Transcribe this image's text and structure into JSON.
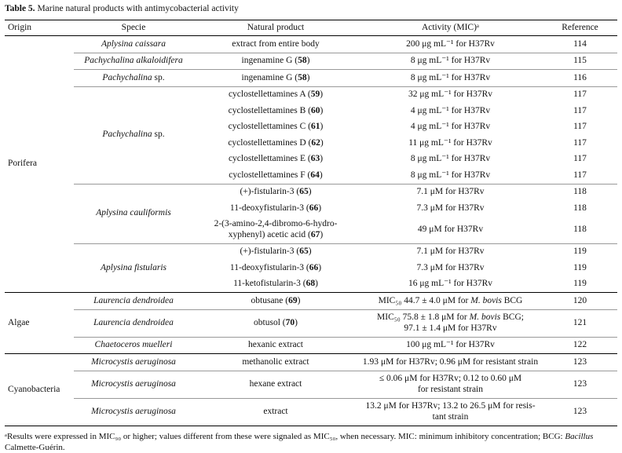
{
  "caption": {
    "label": "Table 5.",
    "text": "Marine natural products with antimycobacterial activity"
  },
  "table": {
    "columns": [
      "Origin",
      "Specie",
      "Natural product",
      "Activity (MIC)ᵃ",
      "Reference"
    ],
    "groups": [
      {
        "origin": "Porifera",
        "species": [
          {
            "name": [
              {
                "t": "Aplysina caissara",
                "i": true
              }
            ],
            "rows": [
              {
                "product": "extract from entire body",
                "activity": "200 μg mL⁻¹ for H37Rv",
                "reference": "114"
              }
            ]
          },
          {
            "name": [
              {
                "t": "Pachychalina alkaloidifera",
                "i": true
              }
            ],
            "rows": [
              {
                "product": [
                  {
                    "t": "ingenamine G ("
                  },
                  {
                    "t": "58",
                    "b": true
                  },
                  {
                    "t": ")"
                  }
                ],
                "activity": "8 μg mL⁻¹ for H37Rv",
                "reference": "115"
              }
            ]
          },
          {
            "name": [
              {
                "t": "Pachychalina",
                "i": true
              },
              {
                "t": " sp."
              }
            ],
            "rows": [
              {
                "product": [
                  {
                    "t": "ingenamine G ("
                  },
                  {
                    "t": "58",
                    "b": true
                  },
                  {
                    "t": ")"
                  }
                ],
                "activity": "8 μg mL⁻¹ for H37Rv",
                "reference": "116"
              }
            ]
          },
          {
            "name": [
              {
                "t": "Pachychalina",
                "i": true
              },
              {
                "t": " sp."
              }
            ],
            "rows": [
              {
                "product": [
                  {
                    "t": "cyclostellettamines A ("
                  },
                  {
                    "t": "59",
                    "b": true
                  },
                  {
                    "t": ")"
                  }
                ],
                "activity": "32 μg mL⁻¹ for H37Rv",
                "reference": "117"
              },
              {
                "product": [
                  {
                    "t": "cyclostellettamines B ("
                  },
                  {
                    "t": "60",
                    "b": true
                  },
                  {
                    "t": ")"
                  }
                ],
                "activity": "4 μg mL⁻¹ for H37Rv",
                "reference": "117"
              },
              {
                "product": [
                  {
                    "t": "cyclostellettamines C ("
                  },
                  {
                    "t": "61",
                    "b": true
                  },
                  {
                    "t": ")"
                  }
                ],
                "activity": "4 μg mL⁻¹ for H37Rv",
                "reference": "117"
              },
              {
                "product": [
                  {
                    "t": "cyclostellettamines D ("
                  },
                  {
                    "t": "62",
                    "b": true
                  },
                  {
                    "t": ")"
                  }
                ],
                "activity": "11 μg mL⁻¹ for H37Rv",
                "reference": "117"
              },
              {
                "product": [
                  {
                    "t": "cyclostellettamines E ("
                  },
                  {
                    "t": "63",
                    "b": true
                  },
                  {
                    "t": ")"
                  }
                ],
                "activity": "8 μg mL⁻¹ for H37Rv",
                "reference": "117"
              },
              {
                "product": [
                  {
                    "t": "cyclostellettamines F ("
                  },
                  {
                    "t": "64",
                    "b": true
                  },
                  {
                    "t": ")"
                  }
                ],
                "activity": "8 μg mL⁻¹ for H37Rv",
                "reference": "117"
              }
            ]
          },
          {
            "name": [
              {
                "t": "Aplysina cauliformis",
                "i": true
              }
            ],
            "rows": [
              {
                "product": [
                  {
                    "t": "(+)-fistularin-3 ("
                  },
                  {
                    "t": "65",
                    "b": true
                  },
                  {
                    "t": ")"
                  }
                ],
                "activity": "7.1 μM for H37Rv",
                "reference": "118"
              },
              {
                "product": [
                  {
                    "t": "11-deoxyfistularin-3 ("
                  },
                  {
                    "t": "66",
                    "b": true
                  },
                  {
                    "t": ")"
                  }
                ],
                "activity": "7.3 μM for H37Rv",
                "reference": "118"
              },
              {
                "product": [
                  {
                    "t": "2-(3-amino-2,4-dibromo-6-hydro-\nxyphenyl) acetic acid ("
                  },
                  {
                    "t": "67",
                    "b": true
                  },
                  {
                    "t": ")"
                  }
                ],
                "activity": "49 μM for H37Rv",
                "reference": "118"
              }
            ]
          },
          {
            "name": [
              {
                "t": "Aplysina fistularis",
                "i": true
              }
            ],
            "rows": [
              {
                "product": [
                  {
                    "t": "(+)-fistularin-3 ("
                  },
                  {
                    "t": "65",
                    "b": true
                  },
                  {
                    "t": ")"
                  }
                ],
                "activity": "7.1 μM for H37Rv",
                "reference": "119"
              },
              {
                "product": [
                  {
                    "t": "11-deoxyfistularin-3 ("
                  },
                  {
                    "t": "66",
                    "b": true
                  },
                  {
                    "t": ")"
                  }
                ],
                "activity": "7.3 μM for H37Rv",
                "reference": "119"
              },
              {
                "product": [
                  {
                    "t": "11-ketofistularin-3 ("
                  },
                  {
                    "t": "68",
                    "b": true
                  },
                  {
                    "t": ")"
                  }
                ],
                "activity": "16 μg mL⁻¹ for H37Rv",
                "reference": "119"
              }
            ]
          }
        ]
      },
      {
        "origin": "Algae",
        "species": [
          {
            "name": [
              {
                "t": "Laurencia dendroidea",
                "i": true
              }
            ],
            "rows": [
              {
                "product": [
                  {
                    "t": "obtusane ("
                  },
                  {
                    "t": "69",
                    "b": true
                  },
                  {
                    "t": ")"
                  }
                ],
                "activity": [
                  {
                    "t": "MIC₅₀ 44.7 ± 4.0 μM for "
                  },
                  {
                    "t": "M. bovis",
                    "i": true
                  },
                  {
                    "t": " BCG"
                  }
                ],
                "reference": "120"
              }
            ]
          },
          {
            "name": [
              {
                "t": "Laurencia dendroidea",
                "i": true
              }
            ],
            "rows": [
              {
                "product": [
                  {
                    "t": "obtusol ("
                  },
                  {
                    "t": "70",
                    "b": true
                  },
                  {
                    "t": ")"
                  }
                ],
                "activity": [
                  {
                    "t": "MIC₅₀ 75.8 ± 1.8 μM for "
                  },
                  {
                    "t": "M. bovis",
                    "i": true
                  },
                  {
                    "t": " BCG;\n97.1 ± 1.4 μM for H37Rv"
                  }
                ],
                "reference": "121"
              }
            ]
          },
          {
            "name": [
              {
                "t": "Chaetoceros muelleri",
                "i": true
              }
            ],
            "rows": [
              {
                "product": "hexanic extract",
                "activity": "100 μg mL⁻¹ for H37Rv",
                "reference": "122"
              }
            ]
          }
        ]
      },
      {
        "origin": "Cyanobacteria",
        "species": [
          {
            "name": [
              {
                "t": "Microcystis aeruginosa",
                "i": true
              }
            ],
            "rows": [
              {
                "product": "methanolic extract",
                "activity": "1.93 μM for H37Rv; 0.96 μM for resistant strain",
                "reference": "123"
              }
            ]
          },
          {
            "name": [
              {
                "t": "Microcystis aeruginosa",
                "i": true
              }
            ],
            "rows": [
              {
                "product": "hexane extract",
                "activity": "≤ 0.06 μM for H37Rv; 0.12 to 0.60 μM\nfor resistant strain",
                "reference": "123"
              }
            ]
          },
          {
            "name": [
              {
                "t": "Microcystis aeruginosa",
                "i": true
              }
            ],
            "rows": [
              {
                "product": "extract",
                "activity": "13.2 μM for H37Rv; 13.2 to 26.5 μM for resis-\ntant strain",
                "reference": "123"
              }
            ]
          }
        ]
      }
    ]
  },
  "footnote": [
    {
      "t": "ᵃResults were expressed in MIC₉₀ or higher; values different from these were signaled as MIC₅₀, when necessary. MIC: minimum inhibitory concentration; BCG: "
    },
    {
      "t": "Bacillus",
      "i": true
    },
    {
      "t": " Calmette-Guérin."
    }
  ]
}
